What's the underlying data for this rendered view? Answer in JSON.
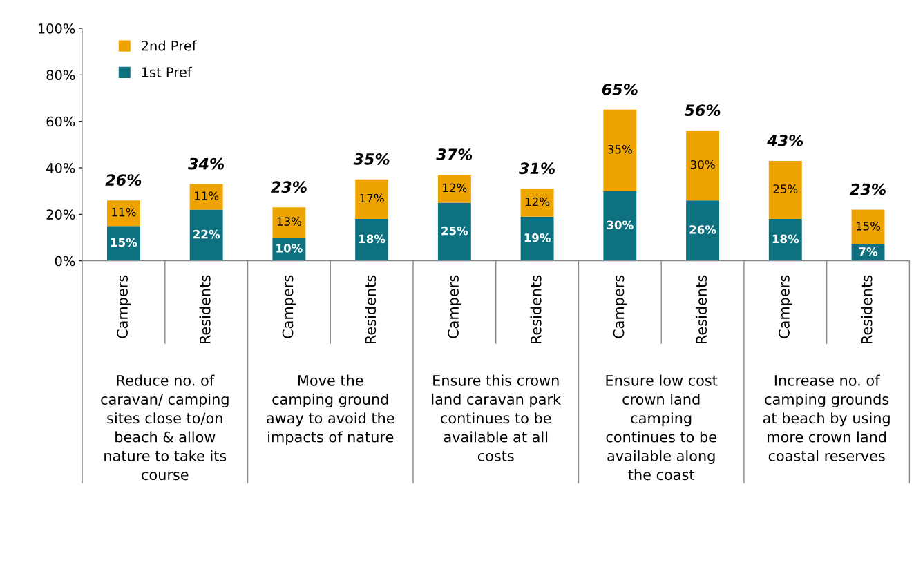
{
  "chart_data": {
    "type": "bar",
    "stacked": true,
    "categories": [
      "Campers",
      "Residents",
      "Campers",
      "Residents",
      "Campers",
      "Residents",
      "Campers",
      "Residents",
      "Campers",
      "Residents"
    ],
    "series": [
      {
        "name": "1st Pref",
        "color": "#0e7180",
        "values": [
          15,
          22,
          10,
          18,
          25,
          19,
          30,
          26,
          18,
          7
        ],
        "value_labels": [
          "15%",
          "22%",
          "10%",
          "18%",
          "25%",
          "19%",
          "30%",
          "26%",
          "18%",
          "7%"
        ]
      },
      {
        "name": "2nd Pref",
        "color": "#eea400",
        "values": [
          11,
          11,
          13,
          17,
          12,
          12,
          35,
          30,
          25,
          15
        ],
        "value_labels": [
          "11%",
          "11%",
          "13%",
          "17%",
          "12%",
          "12%",
          "35%",
          "30%",
          "25%",
          "15%"
        ]
      }
    ],
    "totals": [
      "26%",
      "34%",
      "23%",
      "35%",
      "37%",
      "31%",
      "65%",
      "56%",
      "43%",
      "23%"
    ],
    "annotations": [
      "Reduce no. of\ncaravan/ camping\nsites close to/on\nbeach & allow\nnature to take its\ncourse",
      "Move the\ncamping ground\naway to avoid the\nimpacts of nature",
      "Ensure this crown\nland caravan park\ncontinues to be\navailable at all\ncosts",
      "Ensure low cost\ncrown land\ncamping\ncontinues to be\navailable along\nthe coast",
      "Increase no. of\ncamping grounds\nat beach by using\nmore crown land\ncoastal reserves"
    ],
    "ylim": [
      0,
      100
    ],
    "yticks": [
      {
        "value": 0,
        "label": "0%"
      },
      {
        "value": 20,
        "label": "20%"
      },
      {
        "value": 40,
        "label": "40%"
      },
      {
        "value": 60,
        "label": "60%"
      },
      {
        "value": 80,
        "label": "80%"
      },
      {
        "value": 100,
        "label": "100%"
      }
    ],
    "grid": false,
    "legend": "top left"
  }
}
